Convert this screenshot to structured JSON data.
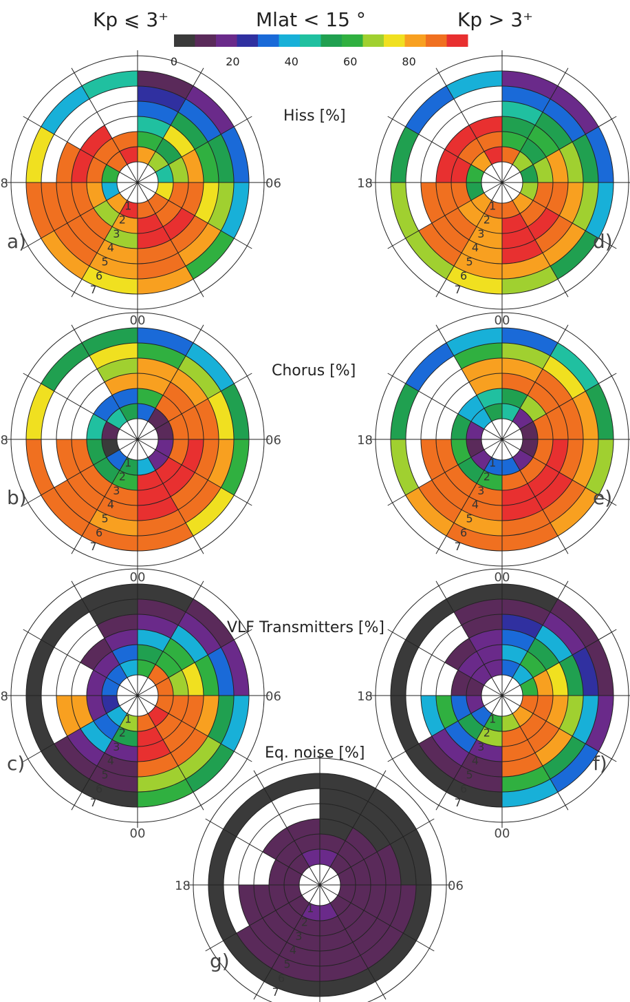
{
  "header": {
    "left": "Kp ⩽ 3⁺",
    "center": "Mlat < 15 °",
    "right": "Kp > 3⁺"
  },
  "colorbar": {
    "ticks": [
      "0",
      "20",
      "40",
      "60",
      "80"
    ],
    "tick_values": [
      0,
      20,
      40,
      60,
      80
    ],
    "range": [
      0,
      100
    ],
    "colors": [
      "#3a3a3a",
      "#5a2a5a",
      "#6a2a8a",
      "#3030a0",
      "#1a6ad8",
      "#18b0d8",
      "#20c0a0",
      "#20a050",
      "#30b040",
      "#a0d030",
      "#f0e020",
      "#f8a020",
      "#f07020",
      "#e83030"
    ]
  },
  "panel_titles": {
    "hiss": "Hiss [%]",
    "chorus": "Chorus [%]",
    "vlf": "VLF Transmitters [%]",
    "eq": "Eq. noise [%]"
  },
  "mlt_labels": {
    "dusk": "18",
    "dawn": "06",
    "midnight": "00"
  },
  "chart_data": {
    "type": "polar-heatmap",
    "description_axes": {
      "radial": "L shell 1–7",
      "angular": "MLT (00 bottom, 06 right, 18 left)"
    },
    "ring_labels": [
      "1",
      "2",
      "3",
      "4",
      "5",
      "6",
      "7"
    ],
    "panels": [
      {
        "id": "a",
        "label": "a)",
        "title_key": "hiss",
        "kp": "low",
        "data": [
          [
            92,
            88,
            78,
            45,
            70,
            85,
            95,
            90,
            60,
            40,
            80,
            95
          ],
          [
            95,
            92,
            88,
            70,
            55,
            60,
            88,
            92,
            90,
            85,
            70,
            80
          ],
          [
            95,
            93,
            90,
            85,
            75,
            45,
            0,
            95,
            93,
            92,
            88,
            70
          ],
          [
            92,
            90,
            75,
            60,
            50,
            35,
            0,
            0,
            88,
            90,
            92,
            85
          ],
          [
            88,
            80,
            70,
            55,
            30,
            25,
            0,
            0,
            0,
            92,
            90,
            82
          ],
          [
            85,
            60,
            40,
            30,
            20,
            10,
            45,
            40,
            75,
            88,
            84,
            72
          ]
        ]
      },
      {
        "id": "b",
        "label": "b)",
        "title_key": "chorus",
        "kp": "low",
        "data": [
          [
            40,
            20,
            15,
            10,
            10,
            30,
            50,
            45,
            10,
            5,
            30,
            50
          ],
          [
            95,
            93,
            92,
            90,
            88,
            60,
            35,
            30,
            45,
            55,
            50,
            60
          ],
          [
            95,
            95,
            93,
            92,
            90,
            85,
            80,
            0,
            0,
            90,
            92,
            90
          ],
          [
            93,
            92,
            90,
            88,
            85,
            80,
            70,
            0,
            0,
            92,
            90,
            88
          ],
          [
            90,
            88,
            80,
            75,
            70,
            60,
            75,
            0,
            0,
            0,
            88,
            85
          ],
          [
            88,
            75,
            60,
            50,
            40,
            30,
            55,
            50,
            75,
            88,
            88,
            90
          ]
        ]
      },
      {
        "id": "c",
        "label": "c)",
        "title_key": "vlf",
        "kp": "low",
        "data": [
          [
            92,
            93,
            90,
            88,
            92,
            60,
            40,
            35,
            30,
            25,
            40,
            70
          ],
          [
            93,
            92,
            90,
            70,
            60,
            50,
            30,
            20,
            15,
            20,
            30,
            50
          ],
          [
            95,
            92,
            88,
            75,
            60,
            40,
            20,
            10,
            0,
            80,
            40,
            20
          ],
          [
            90,
            88,
            80,
            60,
            40,
            20,
            10,
            0,
            0,
            85,
            20,
            10
          ],
          [
            70,
            65,
            50,
            30,
            20,
            10,
            5,
            0,
            0,
            0,
            10,
            8
          ],
          [
            60,
            55,
            40,
            20,
            10,
            5,
            5,
            5,
            5,
            5,
            5,
            5
          ]
        ]
      },
      {
        "id": "d",
        "label": "d)",
        "title_key": "hiss",
        "kp": "high",
        "data": [
          [
            90,
            85,
            70,
            50,
            70,
            92,
            95,
            85,
            60,
            55,
            80,
            90
          ],
          [
            93,
            92,
            88,
            65,
            55,
            60,
            90,
            92,
            93,
            90,
            80,
            85
          ],
          [
            95,
            93,
            90,
            80,
            60,
            50,
            95,
            95,
            93,
            92,
            90,
            82
          ],
          [
            93,
            90,
            85,
            70,
            55,
            45,
            0,
            0,
            0,
            92,
            90,
            85
          ],
          [
            85,
            80,
            70,
            50,
            35,
            30,
            0,
            0,
            0,
            0,
            88,
            80
          ],
          [
            70,
            55,
            40,
            30,
            20,
            15,
            40,
            35,
            55,
            65,
            70,
            72
          ]
        ]
      },
      {
        "id": "e",
        "label": "e)",
        "title_key": "chorus",
        "kp": "high",
        "data": [
          [
            30,
            15,
            10,
            10,
            20,
            45,
            55,
            40,
            15,
            10,
            20,
            35
          ],
          [
            92,
            92,
            90,
            88,
            70,
            55,
            45,
            40,
            50,
            60,
            55,
            60
          ],
          [
            95,
            95,
            93,
            92,
            90,
            88,
            85,
            0,
            0,
            88,
            90,
            88
          ],
          [
            95,
            93,
            92,
            90,
            88,
            85,
            80,
            0,
            0,
            90,
            92,
            90
          ],
          [
            92,
            90,
            85,
            80,
            75,
            65,
            60,
            0,
            0,
            0,
            88,
            85
          ],
          [
            90,
            80,
            65,
            55,
            45,
            35,
            40,
            35,
            55,
            70,
            85,
            90
          ]
        ]
      },
      {
        "id": "f",
        "label": "f)",
        "title_key": "vlf",
        "kp": "high",
        "data": [
          [
            70,
            85,
            92,
            60,
            40,
            30,
            20,
            15,
            10,
            20,
            30,
            60
          ],
          [
            88,
            90,
            92,
            80,
            60,
            40,
            20,
            15,
            10,
            30,
            50,
            70
          ],
          [
            92,
            90,
            85,
            75,
            55,
            35,
            20,
            10,
            0,
            60,
            30,
            15
          ],
          [
            90,
            85,
            70,
            55,
            40,
            25,
            10,
            0,
            0,
            40,
            15,
            10
          ],
          [
            60,
            50,
            40,
            25,
            15,
            10,
            8,
            0,
            0,
            0,
            10,
            8
          ],
          [
            40,
            30,
            20,
            10,
            8,
            5,
            5,
            5,
            5,
            5,
            5,
            5
          ]
        ]
      },
      {
        "id": "g",
        "label": "g)",
        "title_key": "eq",
        "kp": "all",
        "data": [
          [
            15,
            12,
            10,
            8,
            12,
            15,
            15,
            12,
            10,
            10,
            12,
            15
          ],
          [
            12,
            12,
            10,
            10,
            8,
            10,
            12,
            10,
            8,
            10,
            12,
            12
          ],
          [
            10,
            12,
            14,
            10,
            8,
            5,
            8,
            10,
            0,
            10,
            12,
            10
          ],
          [
            10,
            10,
            8,
            8,
            6,
            5,
            0,
            0,
            0,
            12,
            10,
            10
          ],
          [
            8,
            8,
            8,
            6,
            5,
            5,
            0,
            0,
            0,
            0,
            10,
            8
          ],
          [
            6,
            5,
            5,
            5,
            5,
            5,
            5,
            5,
            5,
            5,
            5,
            5
          ]
        ]
      }
    ]
  }
}
